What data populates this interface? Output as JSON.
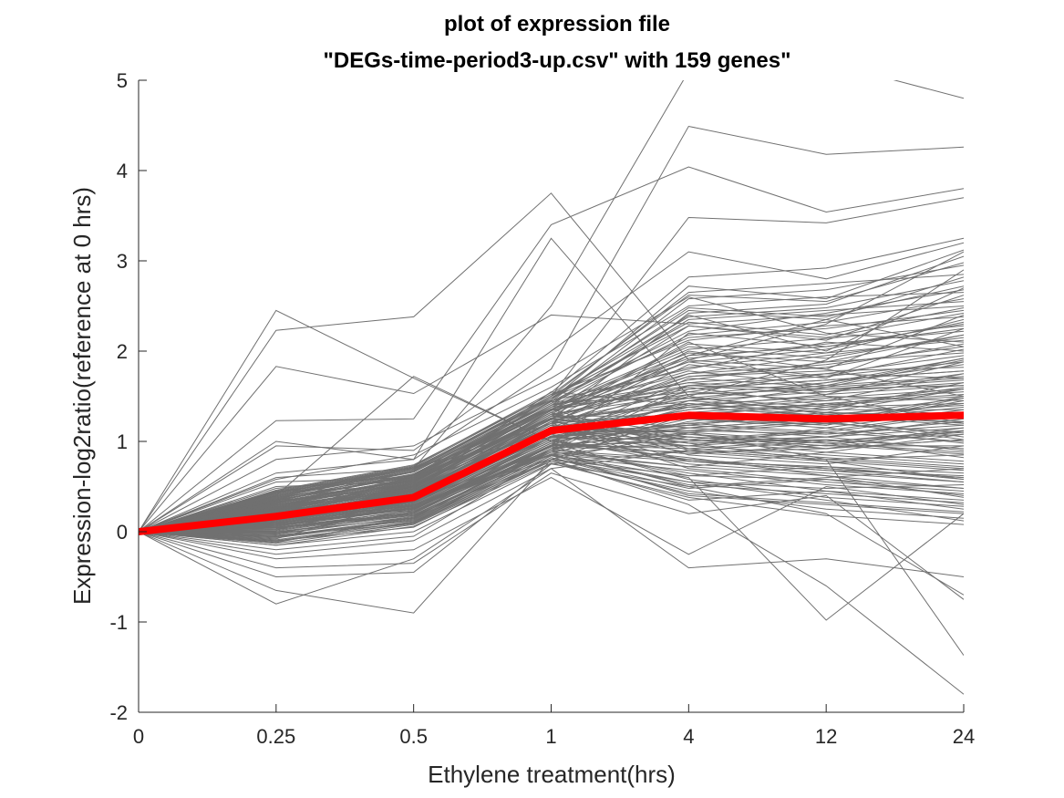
{
  "chart_data": {
    "type": "line",
    "title_line1": "plot of expression file",
    "title_line2": "\"DEGs-time-period3-up.csv\" with 159 genes\"",
    "xlabel": "Ethylene treatment(hrs)",
    "ylabel": "Expression-log2ratio(reference at 0 hrs)",
    "categories": [
      "0",
      "0.25",
      "0.5",
      "1",
      "4",
      "12",
      "24"
    ],
    "ylim": [
      -2,
      5
    ],
    "yticks": [
      "-2",
      "-1",
      "0",
      "1",
      "2",
      "3",
      "4",
      "5"
    ],
    "gene_count": 159,
    "gene_color": "#707070",
    "mean_color": "#ff0000",
    "mean_series": [
      0,
      0.17,
      0.38,
      1.12,
      1.29,
      1.25,
      1.29
    ],
    "gene_series": [
      [
        0,
        2.45,
        1.7,
        1.0,
        0.8,
        0.7,
        0.6
      ],
      [
        0,
        2.23,
        2.38,
        3.75,
        1.9,
        1.8,
        1.5
      ],
      [
        0,
        1.83,
        1.53,
        2.4,
        2.3,
        2.4,
        2.5
      ],
      [
        0,
        1.23,
        1.25,
        3.4,
        4.04,
        3.54,
        3.8
      ],
      [
        0,
        1.0,
        0.8,
        1.8,
        4.49,
        4.18,
        4.26
      ],
      [
        0,
        0.95,
        0.9,
        2.0,
        3.1,
        2.8,
        3.2
      ],
      [
        0,
        0.8,
        0.95,
        1.7,
        2.6,
        2.2,
        2.1
      ],
      [
        0,
        0.65,
        0.8,
        3.25,
        1.5,
        1.3,
        1.2
      ],
      [
        0,
        0.6,
        0.7,
        2.5,
        5.1,
        5.2,
        4.8
      ],
      [
        0,
        0.55,
        0.6,
        1.5,
        3.48,
        3.42,
        3.7
      ],
      [
        0,
        0.5,
        0.55,
        1.4,
        2.4,
        2.0,
        2.7
      ],
      [
        0,
        0.45,
        0.5,
        1.3,
        2.1,
        1.5,
        1.2
      ],
      [
        0,
        0.4,
        1.72,
        1.0,
        1.7,
        1.6,
        1.9
      ],
      [
        0,
        0.35,
        0.45,
        1.2,
        1.9,
        2.3,
        3.1
      ],
      [
        0,
        0.3,
        0.4,
        1.1,
        1.5,
        1.9,
        2.9
      ],
      [
        0,
        0.25,
        0.35,
        0.9,
        0.5,
        0.2,
        -0.7
      ],
      [
        0,
        0.2,
        0.3,
        0.8,
        0.3,
        -0.6,
        -1.8
      ],
      [
        0,
        0.15,
        0.28,
        0.85,
        0.6,
        -0.98,
        0.2
      ],
      [
        0,
        0.1,
        0.25,
        0.95,
        1.1,
        0.8,
        -1.37
      ],
      [
        0,
        0.05,
        0.2,
        1.05,
        1.2,
        1.3,
        1.4
      ],
      [
        0,
        0.0,
        0.15,
        0.95,
        1.0,
        1.1,
        1.0
      ],
      [
        0,
        -0.05,
        0.1,
        0.9,
        0.8,
        0.7,
        0.6
      ],
      [
        0,
        -0.1,
        0.05,
        0.8,
        1.3,
        1.2,
        1.5
      ],
      [
        0,
        -0.15,
        0.0,
        0.75,
        0.9,
        1.0,
        1.1
      ],
      [
        0,
        -0.2,
        -0.05,
        0.85,
        0.4,
        0.3,
        0.2
      ],
      [
        0,
        -0.25,
        -0.1,
        0.7,
        -0.4,
        -0.3,
        -0.5
      ],
      [
        0,
        -0.3,
        -0.2,
        0.6,
        -0.25,
        0.5,
        0.3
      ],
      [
        0,
        -0.4,
        -0.35,
        0.65,
        0.2,
        0.4,
        -0.75
      ],
      [
        0,
        -0.5,
        -0.45,
        0.75,
        0.5,
        0.6,
        0.7
      ],
      [
        0,
        -0.65,
        -0.9,
        0.8,
        1.1,
        1.2,
        1.3
      ],
      [
        0,
        -0.8,
        -0.3,
        0.7,
        0.9,
        0.8,
        0.85
      ],
      [
        0,
        0.38,
        0.6,
        1.25,
        2.0,
        1.8,
        2.4
      ],
      [
        0,
        0.48,
        0.62,
        1.35,
        1.6,
        1.4,
        1.6
      ],
      [
        0,
        0.22,
        0.58,
        1.45,
        1.8,
        2.1,
        2.0
      ],
      [
        0,
        0.12,
        0.48,
        1.55,
        1.4,
        1.6,
        1.7
      ],
      [
        0,
        0.32,
        0.52,
        1.15,
        1.25,
        1.15,
        1.35
      ],
      [
        0,
        0.42,
        0.72,
        1.05,
        0.95,
        0.85,
        0.75
      ],
      [
        0,
        0.18,
        0.32,
        1.0,
        1.45,
        1.65,
        1.85
      ],
      [
        0,
        0.08,
        0.42,
        1.25,
        1.05,
        0.95,
        1.15
      ],
      [
        0,
        0.28,
        0.22,
        0.95,
        2.2,
        2.05,
        2.3
      ],
      [
        0,
        0.58,
        0.85,
        1.6,
        2.5,
        2.6,
        2.65
      ],
      [
        0,
        0.14,
        0.46,
        1.18,
        0.7,
        0.55,
        0.45
      ],
      [
        0,
        -0.08,
        0.36,
        1.08,
        1.35,
        1.45,
        1.55
      ],
      [
        0,
        0.24,
        0.38,
        1.22,
        1.75,
        1.95,
        2.15
      ],
      [
        0,
        0.36,
        0.56,
        1.32,
        0.85,
        0.75,
        0.95
      ],
      [
        0,
        0.06,
        0.26,
        0.88,
        1.15,
        1.25,
        1.05
      ],
      [
        0,
        -0.12,
        0.16,
        0.92,
        0.65,
        0.45,
        0.35
      ],
      [
        0,
        0.44,
        0.66,
        1.42,
        2.35,
        2.45,
        2.55
      ],
      [
        0,
        0.2,
        0.5,
        1.38,
        1.55,
        1.75,
        1.95
      ],
      [
        0,
        0.02,
        0.34,
        1.02,
        0.75,
        0.65,
        0.55
      ],
      [
        0,
        0.3,
        0.44,
        1.12,
        1.85,
        1.7,
        2.25
      ],
      [
        0,
        0.16,
        0.4,
        1.28,
        1.28,
        1.18,
        1.48
      ],
      [
        0,
        -0.02,
        0.24,
        0.98,
        0.58,
        0.38,
        0.28
      ],
      [
        0,
        0.26,
        0.54,
        1.48,
        2.15,
        2.25,
        2.45
      ],
      [
        0,
        0.34,
        0.64,
        1.36,
        1.65,
        1.55,
        1.75
      ],
      [
        0,
        0.1,
        0.3,
        0.86,
        1.0,
        1.05,
        0.9
      ],
      [
        0,
        0.4,
        0.7,
        1.2,
        1.95,
        2.35,
        2.05
      ],
      [
        0,
        0.04,
        0.18,
        0.78,
        0.45,
        0.25,
        0.15
      ],
      [
        0,
        0.21,
        0.47,
        1.16,
        1.38,
        1.52,
        1.62
      ],
      [
        0,
        0.13,
        0.37,
        1.06,
        1.12,
        1.08,
        1.22
      ],
      [
        0,
        0.31,
        0.57,
        1.26,
        1.72,
        1.82,
        2.08
      ],
      [
        0,
        0.09,
        0.29,
        0.94,
        0.88,
        0.78,
        0.68
      ],
      [
        0,
        0.27,
        0.49,
        1.34,
        2.28,
        2.12,
        2.62
      ],
      [
        0,
        0.17,
        0.43,
        1.1,
        1.18,
        1.32,
        1.28
      ],
      [
        0,
        -0.06,
        0.14,
        0.84,
        0.55,
        0.48,
        0.52
      ],
      [
        0,
        0.37,
        0.61,
        1.44,
        1.48,
        1.38,
        1.58
      ],
      [
        0,
        0.23,
        0.51,
        1.24,
        2.42,
        2.52,
        3.05
      ],
      [
        0,
        0.11,
        0.33,
        1.14,
        0.98,
        1.02,
        0.82
      ],
      [
        0,
        0.29,
        0.55,
        1.3,
        1.58,
        1.68,
        1.78
      ],
      [
        0,
        0.07,
        0.27,
        0.96,
        1.08,
        0.92,
        1.12
      ],
      [
        0,
        0.33,
        0.59,
        1.4,
        2.05,
        1.92,
        2.18
      ],
      [
        0,
        0.19,
        0.45,
        1.2,
        0.78,
        0.68,
        0.62
      ],
      [
        0,
        0.01,
        0.21,
        0.9,
        1.22,
        1.38,
        1.42
      ],
      [
        0,
        0.39,
        0.68,
        1.5,
        2.65,
        2.75,
        2.85
      ],
      [
        0,
        0.15,
        0.39,
        1.04,
        1.32,
        1.22,
        1.02
      ],
      [
        0,
        0.25,
        0.53,
        1.28,
        1.68,
        1.88,
        1.98
      ],
      [
        0,
        -0.04,
        0.12,
        0.82,
        0.48,
        0.58,
        0.4
      ],
      [
        0,
        0.35,
        0.63,
        1.38,
        1.88,
        2.02,
        2.32
      ],
      [
        0,
        0.12,
        0.35,
        1.08,
        1.42,
        1.28,
        1.18
      ],
      [
        0,
        0.28,
        0.51,
        1.32,
        0.92,
        0.82,
        0.72
      ],
      [
        0,
        0.05,
        0.23,
        0.92,
        1.62,
        1.72,
        1.88
      ],
      [
        0,
        0.43,
        0.71,
        1.46,
        2.48,
        2.38,
        2.72
      ],
      [
        0,
        0.18,
        0.41,
        1.16,
        1.05,
        0.98,
        1.08
      ],
      [
        0,
        -0.1,
        0.09,
        0.8,
        0.62,
        0.72,
        0.58
      ],
      [
        0,
        0.32,
        0.58,
        1.34,
        1.78,
        1.62,
        1.92
      ],
      [
        0,
        0.22,
        0.48,
        1.22,
        1.28,
        1.42,
        1.52
      ],
      [
        0,
        0.08,
        0.28,
        0.98,
        0.82,
        0.62,
        0.48
      ],
      [
        0,
        0.46,
        0.74,
        1.52,
        2.12,
        2.28,
        2.38
      ],
      [
        0,
        0.14,
        0.36,
        1.12,
        1.52,
        1.58,
        1.68
      ],
      [
        0,
        0.26,
        0.46,
        1.26,
        1.02,
        1.12,
        1.32
      ],
      [
        0,
        -0.15,
        0.06,
        0.76,
        0.38,
        0.18,
        0.08
      ],
      [
        0,
        0.36,
        0.66,
        1.44,
        2.58,
        2.68,
        2.95
      ],
      [
        0,
        0.1,
        0.31,
        1.02,
        1.15,
        1.05,
        1.25
      ],
      [
        0,
        0.2,
        0.44,
        1.18,
        1.72,
        1.78,
        1.82
      ],
      [
        0,
        0.04,
        0.19,
        0.88,
        0.72,
        0.88,
        0.78
      ],
      [
        0,
        0.3,
        0.56,
        1.36,
        1.92,
        2.08,
        2.22
      ],
      [
        0,
        0.16,
        0.38,
        1.1,
        1.12,
        1.22,
        1.38
      ],
      [
        0,
        -0.03,
        0.17,
        0.86,
        0.52,
        0.42,
        0.32
      ],
      [
        0,
        0.41,
        0.69,
        1.48,
        2.32,
        2.18,
        2.48
      ],
      [
        0,
        0.24,
        0.5,
        1.24,
        1.45,
        1.35,
        1.65
      ],
      [
        0,
        0.06,
        0.25,
        0.94,
        0.95,
        1.15,
        0.98
      ],
      [
        0,
        0.34,
        0.62,
        1.4,
        1.82,
        1.98,
        2.12
      ],
      [
        0,
        0.19,
        0.42,
        1.14,
        1.25,
        1.18,
        1.45
      ],
      [
        0,
        -0.07,
        0.13,
        0.84,
        0.68,
        0.52,
        0.42
      ],
      [
        0,
        0.38,
        0.67,
        1.46,
        2.72,
        2.58,
        3.12
      ],
      [
        0,
        0.13,
        0.34,
        1.06,
        1.35,
        1.48,
        1.58
      ],
      [
        0,
        0.27,
        0.52,
        1.3,
        1.08,
        0.98,
        0.88
      ],
      [
        0,
        0.02,
        0.22,
        0.9,
        1.58,
        1.68,
        1.78
      ],
      [
        0,
        0.31,
        0.6,
        1.38,
        2.02,
        2.14,
        2.28
      ],
      [
        0,
        0.17,
        0.4,
        1.12,
        0.88,
        0.92,
        1.02
      ],
      [
        0,
        -0.09,
        0.11,
        0.82,
        0.42,
        0.32,
        0.22
      ],
      [
        0,
        0.45,
        0.73,
        1.54,
        2.82,
        2.92,
        3.25
      ],
      [
        0,
        0.21,
        0.46,
        1.2,
        1.48,
        1.62,
        1.72
      ],
      [
        0,
        0.09,
        0.3,
        1.0,
        1.18,
        1.08,
        1.18
      ],
      [
        0,
        0.33,
        0.59,
        1.34,
        1.62,
        1.52,
        1.88
      ],
      [
        0,
        0.15,
        0.37,
        1.08,
        0.78,
        0.72,
        0.65
      ],
      [
        0,
        -0.01,
        0.2,
        0.92,
        1.25,
        1.35,
        1.35
      ],
      [
        0,
        0.37,
        0.64,
        1.42,
        2.18,
        2.32,
        2.58
      ],
      [
        0,
        0.23,
        0.49,
        1.26,
        1.38,
        1.28,
        1.48
      ],
      [
        0,
        0.07,
        0.26,
        0.96,
        0.92,
        1.02,
        0.92
      ],
      [
        0,
        0.29,
        0.54,
        1.32,
        1.88,
        1.72,
        2.02
      ],
      [
        0,
        0.11,
        0.32,
        1.04,
        1.02,
        0.88,
        1.08
      ],
      [
        0,
        -0.13,
        0.08,
        0.78,
        0.35,
        0.45,
        0.25
      ],
      [
        0,
        0.42,
        0.7,
        1.5,
        2.38,
        2.48,
        2.78
      ],
      [
        0,
        0.18,
        0.42,
        1.16,
        1.62,
        1.58,
        1.62
      ],
      [
        0,
        0.25,
        0.48,
        1.28,
        1.15,
        1.25,
        1.42
      ],
      [
        0,
        0.03,
        0.24,
        0.94,
        0.62,
        0.58,
        0.48
      ],
      [
        0,
        0.35,
        0.61,
        1.38,
        1.98,
        1.88,
        2.18
      ],
      [
        0,
        0.13,
        0.36,
        1.1,
        1.32,
        1.42,
        1.28
      ],
      [
        0,
        0.21,
        0.43,
        1.22,
        0.98,
        0.78,
        0.58
      ],
      [
        0,
        0.39,
        0.66,
        1.44,
        2.22,
        2.42,
        2.68
      ],
      [
        0,
        0.08,
        0.27,
        0.98,
        1.38,
        1.28,
        1.22
      ],
      [
        0,
        0.3,
        0.53,
        1.3,
        1.52,
        1.65,
        1.92
      ],
      [
        0,
        -0.05,
        0.15,
        0.86,
        0.72,
        0.62,
        0.38
      ],
      [
        0,
        0.16,
        0.39,
        1.14,
        1.1,
        1.0,
        1.12
      ],
      [
        0,
        0.44,
        0.72,
        1.52,
        2.62,
        2.55,
        2.98
      ],
      [
        0,
        0.26,
        0.5,
        1.24,
        1.42,
        1.32,
        1.58
      ],
      [
        0,
        0.1,
        0.29,
        1.0,
        0.86,
        0.96,
        0.86
      ],
      [
        0,
        0.32,
        0.57,
        1.36,
        1.75,
        1.85,
        2.05
      ],
      [
        0,
        0.14,
        0.35,
        1.06,
        1.2,
        1.1,
        1.3
      ],
      [
        0,
        -0.11,
        0.1,
        0.8,
        0.55,
        0.35,
        0.12
      ],
      [
        0,
        0.4,
        0.68,
        1.48,
        2.45,
        2.35,
        2.82
      ],
      [
        0,
        0.22,
        0.45,
        1.2,
        1.3,
        1.4,
        1.5
      ],
      [
        0,
        0.05,
        0.21,
        0.92,
        1.05,
        0.95,
        0.95
      ],
      [
        0,
        0.28,
        0.55,
        1.32,
        1.95,
        2.05,
        2.25
      ],
      [
        0,
        0.17,
        0.41,
        1.12,
        0.95,
        1.05,
        1.15
      ],
      [
        0,
        0.35,
        0.63,
        1.4,
        1.65,
        1.75,
        1.7
      ],
      [
        0,
        0.0,
        0.18,
        0.88,
        0.78,
        0.68,
        0.55
      ],
      [
        0,
        0.24,
        0.47,
        1.22,
        1.55,
        1.45,
        1.75
      ],
      [
        0,
        0.12,
        0.33,
        1.04,
        1.18,
        1.32,
        1.25
      ],
      [
        0,
        0.43,
        0.7,
        1.5,
        2.28,
        2.15,
        2.42
      ],
      [
        0,
        0.19,
        0.43,
        1.18,
        1.02,
        0.92,
        1.02
      ],
      [
        0,
        0.07,
        0.26,
        0.96,
        1.45,
        1.55,
        1.65
      ],
      [
        0,
        0.33,
        0.58,
        1.36,
        0.9,
        0.8,
        0.7
      ],
      [
        0,
        -0.02,
        0.16,
        0.9,
        1.3,
        1.2,
        1.1
      ],
      [
        0,
        0.27,
        0.51,
        1.28,
        2.08,
        1.98,
        2.35
      ],
      [
        0,
        0.15,
        0.38,
        1.1,
        1.4,
        1.5,
        1.45
      ]
    ]
  }
}
